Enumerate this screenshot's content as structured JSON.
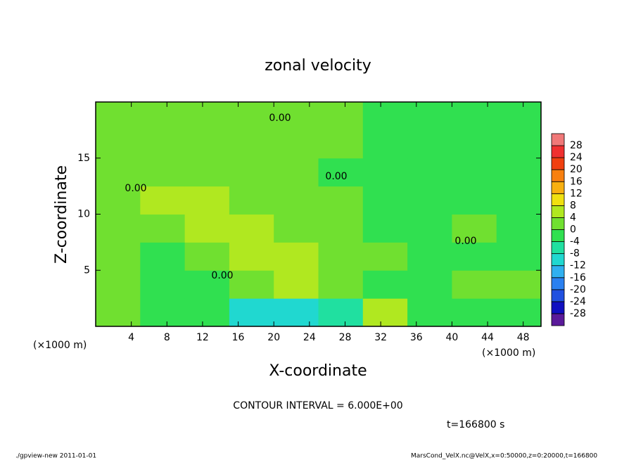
{
  "chart_data": {
    "type": "contour",
    "title": "zonal velocity",
    "xlabel": "X-coordinate",
    "ylabel": "Z-coordinate",
    "x_unit": "(×1000 m)",
    "xlim": [
      0,
      50
    ],
    "ylim": [
      0,
      20
    ],
    "xticks": [
      4,
      8,
      12,
      16,
      20,
      24,
      28,
      32,
      36,
      40,
      44,
      48
    ],
    "yticks": [
      5,
      10,
      15
    ],
    "x": [
      2.5,
      7.5,
      12.5,
      17.5,
      22.5,
      27.5,
      32.5,
      37.5,
      42.5,
      47.5
    ],
    "y": [
      1.25,
      3.75,
      6.25,
      8.75,
      11.25,
      13.75,
      16.25,
      18.75
    ],
    "z": [
      [
        1,
        -3,
        -4,
        -10,
        -12,
        -6,
        6,
        -2,
        -2,
        -1
      ],
      [
        2,
        -4,
        -2,
        3,
        6,
        3,
        -3,
        -1,
        1,
        0
      ],
      [
        1,
        -2,
        1,
        6,
        6,
        3,
        0,
        -1,
        -1,
        -2
      ],
      [
        2,
        3,
        4,
        5,
        3,
        1,
        -1,
        -1,
        0,
        -1
      ],
      [
        3,
        4,
        4,
        3,
        2,
        0,
        -1,
        -1,
        -1,
        -1
      ],
      [
        1,
        3,
        3,
        3,
        2,
        -1,
        -1,
        -1,
        -1,
        -1
      ],
      [
        3,
        3,
        3,
        2,
        1,
        0,
        -1,
        -1,
        -1,
        -1
      ],
      [
        1,
        1,
        2,
        2,
        2,
        0,
        -1,
        -1,
        -1,
        -1
      ]
    ],
    "levels": [
      -28,
      -24,
      -20,
      -16,
      -12,
      -8,
      -4,
      0,
      4,
      8,
      12,
      16,
      20,
      24,
      28
    ],
    "colors": [
      "#5a1a9a",
      "#1010c0",
      "#2050e0",
      "#2a80f0",
      "#30b0f0",
      "#20d8d0",
      "#20e0a0",
      "#30e050",
      "#70e030",
      "#b0e820",
      "#f0e010",
      "#f8b010",
      "#f88010",
      "#f04010",
      "#f03030",
      "#f07878"
    ],
    "contour_labels": [
      "0.00",
      "0.00",
      "0.00",
      "0.00",
      "0.00"
    ],
    "contour_interval": "CONTOUR INTERVAL = 6.000E+00",
    "time": "t=166800 s",
    "footer_left": "./gpview-new  2011-01-01",
    "footer_right": "MarsCond_VelX.nc@VelX,x=0:50000,z=0:20000,t=166800"
  }
}
